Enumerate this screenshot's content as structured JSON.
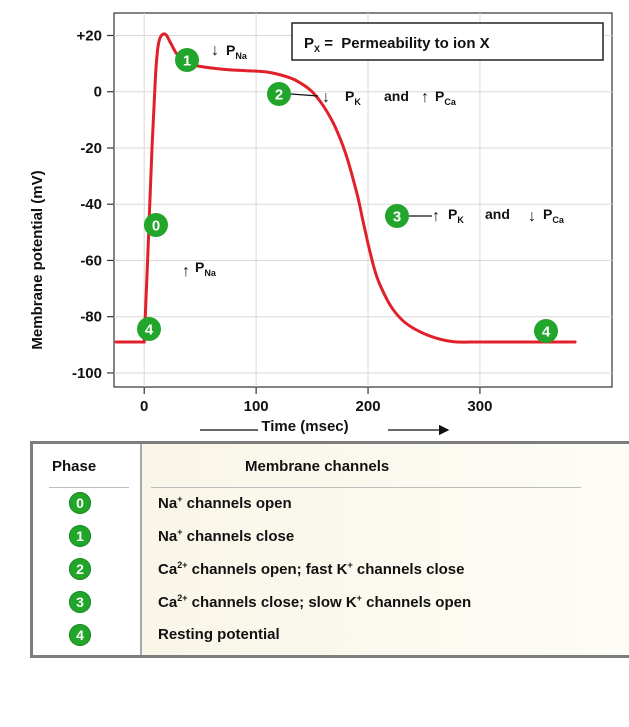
{
  "chart_data": {
    "type": "line",
    "ylabel": "Membrane potential (mV)",
    "xlabel": "Time (msec)",
    "x_ticks": [
      {
        "v": 0,
        "label": "0"
      },
      {
        "v": 100,
        "label": "100"
      },
      {
        "v": 200,
        "label": "200"
      },
      {
        "v": 300,
        "label": "300"
      }
    ],
    "y_ticks": [
      {
        "v": 20,
        "label": "+20"
      },
      {
        "v": 0,
        "label": "0"
      },
      {
        "v": -20,
        "label": "-20"
      },
      {
        "v": -40,
        "label": "-40"
      },
      {
        "v": -60,
        "label": "-60"
      },
      {
        "v": -80,
        "label": "-80"
      },
      {
        "v": -100,
        "label": "-100"
      }
    ],
    "xlim": [
      -27,
      418
    ],
    "ylim": [
      -105,
      28
    ],
    "grid": true,
    "line_color": "#e0202a",
    "series": [
      {
        "values": [
          [
            -25,
            -89
          ],
          [
            0,
            -89
          ],
          [
            3,
            -60
          ],
          [
            7,
            -20
          ],
          [
            10,
            5
          ],
          [
            12,
            15
          ],
          [
            14,
            19
          ],
          [
            17,
            20.5
          ],
          [
            20,
            20
          ],
          [
            24,
            17
          ],
          [
            30,
            13
          ],
          [
            40,
            10
          ],
          [
            50,
            9
          ],
          [
            70,
            8
          ],
          [
            90,
            7.5
          ],
          [
            110,
            7
          ],
          [
            130,
            5
          ],
          [
            140,
            3
          ],
          [
            150,
            0
          ],
          [
            160,
            -5
          ],
          [
            170,
            -12
          ],
          [
            180,
            -22
          ],
          [
            190,
            -36
          ],
          [
            195,
            -45
          ],
          [
            200,
            -54
          ],
          [
            205,
            -62
          ],
          [
            210,
            -68
          ],
          [
            220,
            -76
          ],
          [
            230,
            -81
          ],
          [
            240,
            -84
          ],
          [
            250,
            -86
          ],
          [
            260,
            -87.5
          ],
          [
            270,
            -88.5
          ],
          [
            280,
            -89
          ],
          [
            300,
            -89
          ],
          [
            330,
            -89
          ],
          [
            360,
            -89
          ],
          [
            385,
            -89
          ]
        ]
      }
    ]
  },
  "legend_box": {
    "symbol": "P",
    "subscript": "X",
    "text": " =  Permeability to ion X"
  },
  "annotations": [
    {
      "phase": "1",
      "text": "P",
      "sub": "Na",
      "arrow": "down"
    },
    {
      "phase": "2",
      "text1": "P",
      "sub1": "K",
      "arrow1": "down",
      "and": "and",
      "text2": "P",
      "sub2": "Ca",
      "arrow2": "up"
    },
    {
      "phase": "3",
      "text1": "P",
      "sub1": "K",
      "arrow1": "up",
      "and": "and",
      "text2": "P",
      "sub2": "Ca",
      "arrow2": "down"
    },
    {
      "phase": "0",
      "text": "P",
      "sub": "Na",
      "arrow": "up"
    }
  ],
  "phase_badges": [
    "0",
    "1",
    "2",
    "3",
    "4",
    "4"
  ],
  "colors": {
    "badge": "#22a52b",
    "curve": "#e0202a"
  },
  "table": {
    "header_phase": "Phase",
    "header_channels": "Membrane channels",
    "rows": [
      {
        "phase": "0",
        "parts": [
          "Na",
          "+",
          " channels open"
        ]
      },
      {
        "phase": "1",
        "parts": [
          "Na",
          "+",
          " channels close"
        ]
      },
      {
        "phase": "2",
        "parts": [
          "Ca",
          "2+",
          " channels open; fast K",
          "+",
          " channels close"
        ]
      },
      {
        "phase": "3",
        "parts": [
          "Ca",
          "2+",
          " channels close; slow K",
          "+",
          " channels open"
        ]
      },
      {
        "phase": "4",
        "parts": [
          "Resting potential"
        ]
      }
    ]
  }
}
